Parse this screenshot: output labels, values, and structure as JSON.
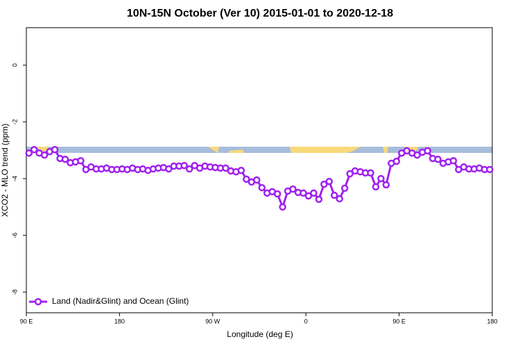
{
  "chart_data": {
    "type": "line",
    "title": "10N-15N October (Ver 10)   2015-01-01 to 2020-12-18",
    "x_label": "Longitude (deg E)",
    "y_label": "XCO2 - MLO trend (ppm)",
    "xlim": [
      90,
      540
    ],
    "ylim": [
      -8.73,
      1.32
    ],
    "xticks": [
      {
        "value": 90,
        "label": "90 E"
      },
      {
        "value": 180,
        "label": "180"
      },
      {
        "value": 270,
        "label": "90 W"
      },
      {
        "value": 360,
        "label": "0"
      },
      {
        "value": 450,
        "label": "90 E"
      },
      {
        "value": 540,
        "label": "180"
      }
    ],
    "yticks": [
      0,
      -2,
      -4,
      -6,
      -8
    ],
    "legend": "bottom-left",
    "x": [
      92.5,
      97.5,
      102.5,
      107.5,
      112.5,
      117.5,
      122.5,
      127.5,
      132.5,
      137.5,
      142.5,
      147.5,
      152.5,
      157.5,
      162.5,
      167.5,
      172.5,
      177.5,
      182.5,
      187.5,
      192.5,
      197.5,
      202.5,
      207.5,
      212.5,
      217.5,
      222.5,
      227.5,
      232.5,
      237.5,
      242.5,
      247.5,
      252.5,
      257.5,
      262.5,
      267.5,
      272.5,
      277.5,
      282.5,
      287.5,
      292.5,
      297.5,
      302.5,
      307.5,
      312.5,
      317.5,
      322.5,
      327.5,
      332.5,
      337.5,
      342.5,
      347.5,
      352.5,
      357.5,
      362.5,
      367.5,
      372.5,
      377.5,
      382.5,
      387.5,
      392.5,
      397.5,
      402.5,
      407.5,
      412.5,
      417.5,
      422.5,
      427.5,
      432.5,
      437.5,
      442.5,
      447.5,
      452.5,
      457.5,
      462.5,
      467.5,
      472.5,
      477.5,
      482.5,
      487.5,
      492.5,
      497.5,
      502.5,
      507.5,
      512.5,
      517.5,
      522.5,
      527.5,
      532.5,
      537.5
    ],
    "series": [
      {
        "name": "Land (Nadir&Glint) and Ocean (Glint)",
        "color": "#a020f0",
        "values": [
          -3.1,
          -2.98,
          -3.1,
          -3.17,
          -3.05,
          -2.98,
          -3.29,
          -3.32,
          -3.44,
          -3.41,
          -3.37,
          -3.68,
          -3.59,
          -3.66,
          -3.66,
          -3.63,
          -3.68,
          -3.68,
          -3.66,
          -3.68,
          -3.63,
          -3.68,
          -3.66,
          -3.71,
          -3.66,
          -3.63,
          -3.61,
          -3.66,
          -3.56,
          -3.56,
          -3.54,
          -3.66,
          -3.54,
          -3.63,
          -3.56,
          -3.59,
          -3.61,
          -3.63,
          -3.63,
          -3.73,
          -3.76,
          -3.71,
          -4.02,
          -4.12,
          -4.05,
          -4.32,
          -4.51,
          -4.46,
          -4.54,
          -5.0,
          -4.44,
          -4.37,
          -4.49,
          -4.51,
          -4.61,
          -4.51,
          -4.73,
          -4.2,
          -4.1,
          -4.59,
          -4.71,
          -4.34,
          -3.83,
          -3.73,
          -3.76,
          -3.8,
          -3.8,
          -4.29,
          -4.0,
          -4.22,
          -3.46,
          -3.39,
          -3.1,
          -3.02,
          -3.1,
          -3.17,
          -3.07,
          -3.02,
          -3.29,
          -3.32,
          -3.46,
          -3.41,
          -3.37,
          -3.68,
          -3.59,
          -3.66,
          -3.66,
          -3.63,
          -3.68,
          -3.68
        ]
      }
    ]
  }
}
